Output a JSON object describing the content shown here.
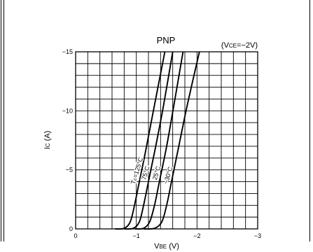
{
  "chart_data": {
    "type": "line",
    "title": "PNP",
    "condition": "(VCE=−2V)",
    "condition_parts": {
      "open": "(V",
      "sub": "CE",
      "rest": "=−2V)"
    },
    "xlabel_parts": {
      "main": "V",
      "sub": "BE",
      "unit": "(V)"
    },
    "ylabel_parts": {
      "main": "I",
      "sub": "C",
      "unit": "(A)"
    },
    "x_axis": {
      "range": [
        0,
        -3
      ],
      "ticks": [
        0,
        -1,
        -2,
        -3
      ],
      "tick_labels": [
        "0",
        "−1",
        "−2",
        "−3"
      ],
      "minor_divisions": 15
    },
    "y_axis": {
      "range": [
        0,
        -15
      ],
      "ticks": [
        0,
        -5,
        -10,
        -15
      ],
      "tick_labels": [
        "0",
        "−5",
        "−10",
        "−15"
      ],
      "minor_divisions": 15
    },
    "grid": true,
    "series": [
      {
        "name": "Ta=125°C",
        "label_parts": {
          "main": "T",
          "sub": "a",
          "rest": "=125°C"
        },
        "points": [
          [
            -0.65,
            0
          ],
          [
            -0.8,
            -0.05
          ],
          [
            -0.9,
            -0.6
          ],
          [
            -0.97,
            -2.0
          ],
          [
            -1.05,
            -4.0
          ],
          [
            -1.15,
            -6.5
          ],
          [
            -1.3,
            -10.5
          ],
          [
            -1.47,
            -15
          ]
        ]
      },
      {
        "name": "75°C",
        "label_parts": {
          "main": "75°C"
        },
        "points": [
          [
            -0.8,
            0
          ],
          [
            -0.95,
            -0.05
          ],
          [
            -1.05,
            -0.6
          ],
          [
            -1.12,
            -2.0
          ],
          [
            -1.2,
            -4.0
          ],
          [
            -1.32,
            -7.0
          ],
          [
            -1.45,
            -10.5
          ],
          [
            -1.6,
            -15
          ]
        ]
      },
      {
        "name": "25°C",
        "label_parts": {
          "main": "25°C"
        },
        "points": [
          [
            -0.98,
            0
          ],
          [
            -1.12,
            -0.05
          ],
          [
            -1.22,
            -0.6
          ],
          [
            -1.3,
            -2.0
          ],
          [
            -1.38,
            -4.0
          ],
          [
            -1.5,
            -7.0
          ],
          [
            -1.62,
            -10.5
          ],
          [
            -1.77,
            -15
          ]
        ]
      },
      {
        "name": "−30°C",
        "label_parts": {
          "main": "−30°C"
        },
        "points": [
          [
            -1.12,
            0
          ],
          [
            -1.3,
            -0.05
          ],
          [
            -1.42,
            -0.6
          ],
          [
            -1.5,
            -2.0
          ],
          [
            -1.58,
            -4.0
          ],
          [
            -1.7,
            -7.0
          ],
          [
            -1.84,
            -10.5
          ],
          [
            -2.04,
            -15
          ]
        ]
      }
    ]
  }
}
